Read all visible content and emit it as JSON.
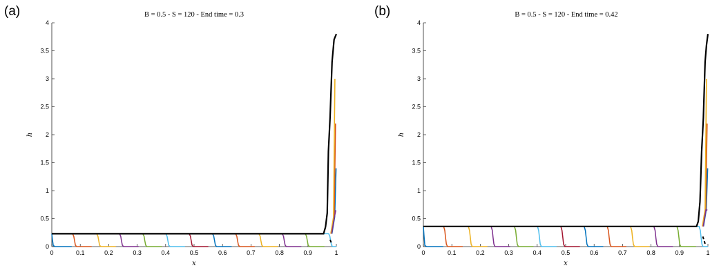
{
  "chart_data": [
    {
      "panel": "(a)",
      "type": "line",
      "title": "B = 0.5 - S = 120 - End time = 0.3",
      "xlabel": "x",
      "ylabel": "h",
      "xlim": [
        0,
        1
      ],
      "ylim": [
        0,
        4
      ],
      "xticks": [
        "0",
        "0.1",
        "0.2",
        "0.3",
        "0.4",
        "0.5",
        "0.6",
        "0.7",
        "0.8",
        "0.9",
        "1"
      ],
      "yticks": [
        "0",
        "0.5",
        "1",
        "1.5",
        "2",
        "2.5",
        "3",
        "3.5",
        "4"
      ],
      "plateau": 0.23,
      "front_positions": [
        0.0,
        0.08,
        0.165,
        0.245,
        0.327,
        0.408,
        0.49,
        0.572,
        0.653,
        0.735,
        0.817,
        0.898,
        0.98
      ],
      "tip_heights": [
        1.4,
        2.2,
        3.0,
        0.65
      ],
      "series_colors": [
        "#0072BD",
        "#D95319",
        "#EDB120",
        "#7E2F8E",
        "#77AC30",
        "#4DBEEE",
        "#A2142F"
      ],
      "envelope": {
        "color": "#000000",
        "x": [
          0,
          0.955,
          0.962,
          0.968,
          0.972,
          0.978,
          0.985,
          0.992,
          1.0
        ],
        "y": [
          0.23,
          0.23,
          0.35,
          0.6,
          1.7,
          2.3,
          3.3,
          3.7,
          3.8
        ]
      },
      "dashed_tail": {
        "x": [
          0.978,
          0.985
        ],
        "y": [
          0.12,
          0.04
        ]
      }
    },
    {
      "panel": "(b)",
      "type": "line",
      "title": "B = 0.5 - S = 120 - End time = 0.42",
      "xlabel": "x",
      "ylabel": "h",
      "xlim": [
        0,
        1
      ],
      "ylim": [
        0,
        4
      ],
      "xticks": [
        "0",
        "0.1",
        "0.2",
        "0.3",
        "0.4",
        "0.5",
        "0.6",
        "0.7",
        "0.8",
        "0.9",
        "1"
      ],
      "yticks": [
        "0",
        "0.5",
        "1",
        "1.5",
        "2",
        "2.5",
        "3",
        "3.5",
        "4"
      ],
      "plateau": 0.36,
      "front_positions": [
        0.0,
        0.078,
        0.165,
        0.245,
        0.327,
        0.408,
        0.49,
        0.572,
        0.653,
        0.735,
        0.817,
        0.898,
        0.976
      ],
      "tip_heights": [
        1.4,
        2.2,
        3.0,
        0.65
      ],
      "series_colors": [
        "#0072BD",
        "#D95319",
        "#EDB120",
        "#7E2F8E",
        "#77AC30",
        "#4DBEEE",
        "#A2142F"
      ],
      "envelope": {
        "color": "#000000",
        "x": [
          0,
          0.96,
          0.966,
          0.972,
          0.978,
          0.984,
          0.99,
          0.995,
          1.0
        ],
        "y": [
          0.36,
          0.36,
          0.45,
          0.8,
          1.7,
          2.3,
          3.3,
          3.6,
          3.8
        ]
      },
      "dashed_tail": {
        "x": [
          0.982,
          0.992
        ],
        "y": [
          0.18,
          0.02
        ]
      }
    }
  ]
}
